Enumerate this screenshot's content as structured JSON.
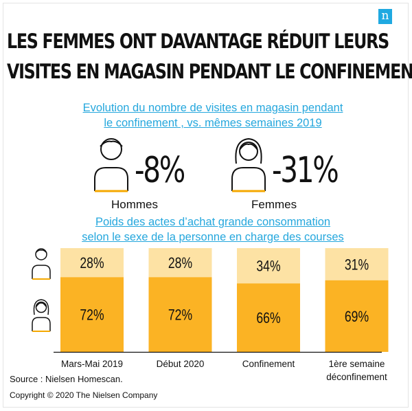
{
  "title_line1": "LES FEMMES ONT DAVANTAGE RÉDUIT LEURS",
  "title_line2": "VISITES EN MAGASIN PENDANT LE CONFINEMENT",
  "logo": "n",
  "subtitle1_line1": "Evolution du nombre de visites en magasin pendant",
  "subtitle1_line2": "le confinement , vs. mêmes semaines 2019",
  "stats": {
    "men": {
      "value": "-8%",
      "label": "Hommes",
      "icon": "man-icon"
    },
    "women": {
      "value": "-31%",
      "label": "Femmes",
      "icon": "woman-icon"
    }
  },
  "subtitle2_line1": "Poids des actes d’achat grande consommation",
  "subtitle2_line2": "selon le sexe de la personne en charge des courses",
  "colors": {
    "men": "#fde2a4",
    "women": "#fbb324",
    "accent": "#f5a800",
    "link": "#25a7dd"
  },
  "chart_data": {
    "type": "bar",
    "stacked": true,
    "categories": [
      "Mars-Mai 2019",
      "Début 2020",
      "Confinement",
      "1ère semaine déconfinement"
    ],
    "category_labels": [
      [
        "Mars-Mai 2019"
      ],
      [
        "Début 2020"
      ],
      [
        "Confinement"
      ],
      [
        "1ère semaine",
        "déconfinement"
      ]
    ],
    "series": [
      {
        "values": [
          72,
          72,
          66,
          69
        ],
        "labels": [
          "72%",
          "72%",
          "66%",
          "69%"
        ],
        "icon": "woman-icon"
      },
      {
        "values": [
          28,
          28,
          34,
          31
        ],
        "labels": [
          "28%",
          "28%",
          "34%",
          "31%"
        ],
        "icon": "man-icon"
      }
    ],
    "ylim": [
      0,
      100
    ]
  },
  "footer": {
    "source": "Source : Nielsen Homescan.",
    "copyright": "Copyright © 2020 The Nielsen Company"
  }
}
